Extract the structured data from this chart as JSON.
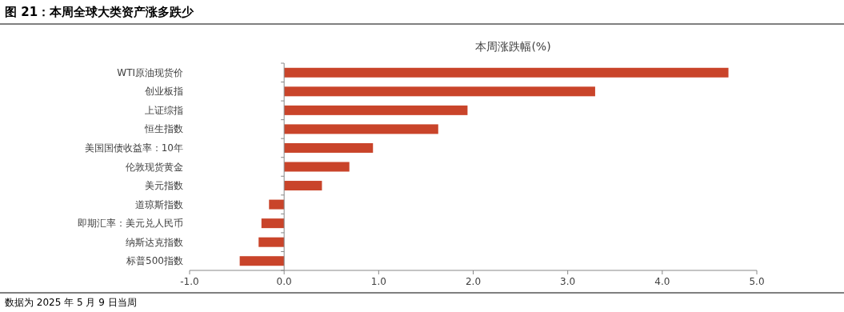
{
  "chart_data": {
    "type": "bar",
    "orientation": "horizontal",
    "title": "本周涨跌幅(%)",
    "annotations": [
      "图 21：本周全球大类资产涨多跌少",
      "数据为 2025 年 5 月 9 日当周"
    ],
    "categories": [
      "WTI原油现货价",
      "创业板指",
      "上证综指",
      "恒生指数",
      "美国国债收益率：10年",
      "伦敦现货黄金",
      "美元指数",
      "道琼斯指数",
      "即期汇率：美元兑人民币",
      "纳斯达克指数",
      "标普500指数"
    ],
    "values": [
      4.7,
      3.29,
      1.94,
      1.63,
      0.94,
      0.69,
      0.4,
      -0.16,
      -0.24,
      -0.27,
      -0.47
    ],
    "color": "#c9442a",
    "xlim": [
      -1,
      5
    ],
    "xticks": [
      {
        "value": -1,
        "label": "-1.0"
      },
      {
        "value": 0,
        "label": "0.0"
      },
      {
        "value": 1,
        "label": "1.0"
      },
      {
        "value": 2,
        "label": "2.0"
      },
      {
        "value": 3,
        "label": "3.0"
      },
      {
        "value": 4,
        "label": "4.0"
      },
      {
        "value": 5,
        "label": "5.0"
      }
    ]
  }
}
